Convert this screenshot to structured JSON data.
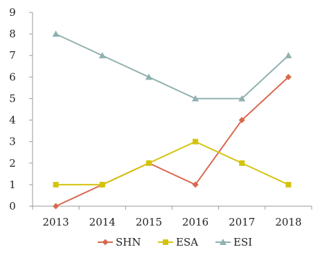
{
  "chart_data": {
    "type": "line",
    "title": "",
    "xlabel": "",
    "ylabel": "",
    "categories": [
      "2013",
      "2014",
      "2015",
      "2016",
      "2017",
      "2018"
    ],
    "ylim": [
      0,
      9
    ],
    "yticks": [
      "0",
      "1",
      "2",
      "3",
      "4",
      "5",
      "6",
      "7",
      "8",
      "9"
    ],
    "grid": false,
    "legend_position": "bottom",
    "series": [
      {
        "name": "SHN",
        "values": [
          0,
          1,
          2,
          1,
          4,
          6
        ],
        "color": "#D9684E",
        "marker": "diamond"
      },
      {
        "name": "ESA",
        "values": [
          1,
          1,
          2,
          3,
          2,
          1
        ],
        "color": "#D4C30C",
        "marker": "square"
      },
      {
        "name": "ESI",
        "values": [
          8,
          7,
          6,
          5,
          5,
          7
        ],
        "color": "#8FB1B0",
        "marker": "triangle"
      }
    ]
  }
}
